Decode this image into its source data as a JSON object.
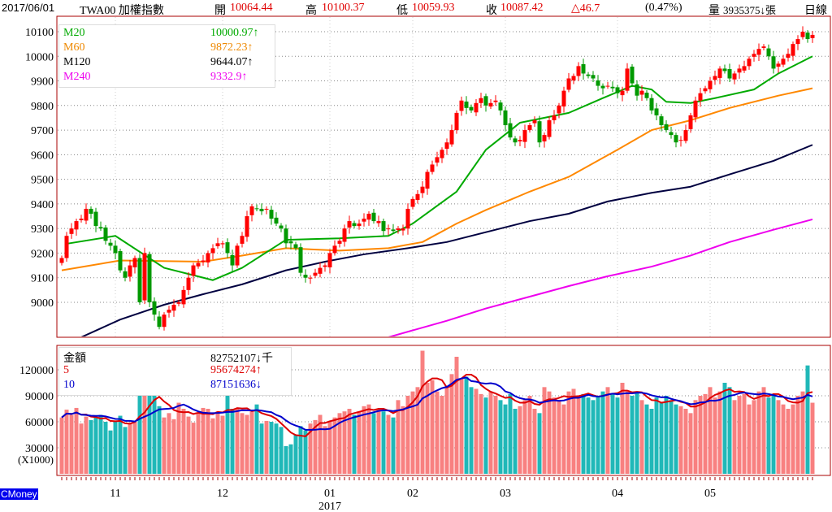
{
  "header": {
    "date": "2017/06/01",
    "symbol": "TWA00 加權指數",
    "open_label": "開",
    "open": "10064.44",
    "high_label": "高",
    "high": "10100.37",
    "low_label": "低",
    "low": "10059.93",
    "close_label": "收",
    "close": "10087.42",
    "change": "△46.7",
    "change_pct": "(0.47%)",
    "volume_label": "量",
    "volume": "3935375↓張",
    "period": "日線"
  },
  "brand": "CMoney",
  "colors": {
    "up": "#ff0000",
    "down": "#009900",
    "ma20": "#00aa00",
    "ma60": "#ff8800",
    "ma120": "#000040",
    "ma240": "#ee00ee",
    "vol_up": "#f88080",
    "vol_down": "#20b8b8",
    "vol_ma5": "#dd0000",
    "vol_ma10": "#0000cc",
    "frame": "#aa0000"
  },
  "price_legend": [
    {
      "name": "M20",
      "value": "10000.97↑",
      "color": "#00aa00"
    },
    {
      "name": "M60",
      "value": "9872.23↑",
      "color": "#ee8800"
    },
    {
      "name": "M120",
      "value": "9644.07↑",
      "color": "#000000"
    },
    {
      "name": "M240",
      "value": "9332.9↑",
      "color": "#ee00ee"
    }
  ],
  "volume_legend": [
    {
      "name": "金額",
      "value": "82752107↓千",
      "color": "#000000"
    },
    {
      "name": "5",
      "value": "95674274↑",
      "color": "#dd0000"
    },
    {
      "name": "10",
      "value": "87151636↓",
      "color": "#0000cc"
    }
  ],
  "chart_data": [
    {
      "type": "candlestick",
      "ylim": [
        8860,
        10150
      ],
      "yticks": [
        "10100",
        "10000",
        "9900",
        "9800",
        "9700",
        "9600",
        "9500",
        "9400",
        "9300",
        "9200",
        "9100",
        "9000"
      ],
      "xticks": [
        {
          "label": "11",
          "bar": 11
        },
        {
          "label": "12",
          "bar": 33
        },
        {
          "label": "01",
          "bar": 55
        },
        {
          "label": "02",
          "bar": 72
        },
        {
          "label": "03",
          "bar": 91
        },
        {
          "label": "04",
          "bar": 114
        },
        {
          "label": "05",
          "bar": 133
        }
      ],
      "xtick_year": {
        "label": "2017",
        "bar": 55
      },
      "closes": [
        9180,
        9270,
        9300,
        9330,
        9340,
        9380,
        9360,
        9310,
        9300,
        9250,
        9230,
        9200,
        9130,
        9100,
        9150,
        9180,
        9000,
        9200,
        9000,
        8950,
        8900,
        8950,
        8970,
        8990,
        9000,
        9050,
        9100,
        9150,
        9160,
        9170,
        9200,
        9220,
        9240,
        9240,
        9200,
        9150,
        9230,
        9270,
        9350,
        9390,
        9380,
        9370,
        9380,
        9340,
        9320,
        9300,
        9240,
        9240,
        9220,
        9120,
        9100,
        9100,
        9120,
        9140,
        9150,
        9200,
        9230,
        9250,
        9300,
        9330,
        9310,
        9320,
        9340,
        9360,
        9330,
        9330,
        9290,
        9300,
        9290,
        9300,
        9300,
        9380,
        9420,
        9440,
        9470,
        9530,
        9560,
        9590,
        9620,
        9650,
        9700,
        9770,
        9820,
        9790,
        9780,
        9810,
        9830,
        9800,
        9810,
        9820,
        9780,
        9720,
        9670,
        9650,
        9660,
        9700,
        9720,
        9740,
        9650,
        9680,
        9740,
        9760,
        9800,
        9860,
        9910,
        9920,
        9960,
        9930,
        9920,
        9910,
        9880,
        9870,
        9880,
        9870,
        9850,
        9860,
        9950,
        9890,
        9840,
        9860,
        9830,
        9780,
        9760,
        9720,
        9700,
        9680,
        9650,
        9660,
        9700,
        9760,
        9820,
        9850,
        9870,
        9900,
        9920,
        9950,
        9940,
        9910,
        9930,
        9950,
        9960,
        9990,
        10010,
        10030,
        10040,
        10000,
        9950,
        9970,
        9990,
        10010,
        10050,
        10070,
        10100,
        10070,
        10087
      ],
      "ma20": [
        [
          1,
          9238
        ],
        [
          11,
          9270
        ],
        [
          21,
          9140
        ],
        [
          31,
          9090
        ],
        [
          37,
          9140
        ],
        [
          46,
          9254
        ],
        [
          57,
          9260
        ],
        [
          67,
          9270
        ],
        [
          72,
          9320
        ],
        [
          81,
          9450
        ],
        [
          87,
          9620
        ],
        [
          94,
          9730
        ],
        [
          104,
          9770
        ],
        [
          111,
          9830
        ],
        [
          117,
          9880
        ],
        [
          121,
          9865
        ],
        [
          124,
          9815
        ],
        [
          129,
          9810
        ],
        [
          134,
          9830
        ],
        [
          142,
          9865
        ],
        [
          147,
          9930
        ],
        [
          154,
          10000
        ]
      ],
      "ma60": [
        [
          0,
          9130
        ],
        [
          12,
          9170
        ],
        [
          29,
          9165
        ],
        [
          37,
          9190
        ],
        [
          46,
          9220
        ],
        [
          57,
          9210
        ],
        [
          67,
          9220
        ],
        [
          74,
          9245
        ],
        [
          81,
          9320
        ],
        [
          87,
          9375
        ],
        [
          96,
          9450
        ],
        [
          104,
          9510
        ],
        [
          114,
          9620
        ],
        [
          121,
          9700
        ],
        [
          129,
          9740
        ],
        [
          137,
          9790
        ],
        [
          147,
          9840
        ],
        [
          154,
          9870
        ]
      ],
      "ma120": [
        [
          4,
          8858
        ],
        [
          12,
          8930
        ],
        [
          21,
          8990
        ],
        [
          29,
          9033
        ],
        [
          37,
          9073
        ],
        [
          46,
          9130
        ],
        [
          54,
          9165
        ],
        [
          62,
          9195
        ],
        [
          71,
          9220
        ],
        [
          79,
          9245
        ],
        [
          87,
          9285
        ],
        [
          96,
          9330
        ],
        [
          104,
          9360
        ],
        [
          112,
          9410
        ],
        [
          121,
          9445
        ],
        [
          129,
          9470
        ],
        [
          137,
          9520
        ],
        [
          146,
          9575
        ],
        [
          154,
          9640
        ]
      ],
      "ma240": [
        [
          67,
          8858
        ],
        [
          79,
          8925
        ],
        [
          87,
          8975
        ],
        [
          96,
          9023
        ],
        [
          104,
          9066
        ],
        [
          112,
          9106
        ],
        [
          121,
          9145
        ],
        [
          129,
          9190
        ],
        [
          137,
          9245
        ],
        [
          146,
          9295
        ],
        [
          154,
          9337
        ]
      ]
    },
    {
      "type": "bar",
      "ylabel": "(X1000)",
      "yticks": [
        "120000",
        "90000",
        "60000",
        "30000"
      ],
      "ylim": [
        0,
        145000
      ],
      "values": [
        65000,
        74000,
        68000,
        76000,
        58000,
        66000,
        62000,
        65000,
        68000,
        60000,
        50000,
        60000,
        67000,
        54000,
        58000,
        60000,
        92000,
        90000,
        92000,
        92000,
        78000,
        65000,
        70000,
        63000,
        82000,
        75000,
        66000,
        59000,
        70000,
        76000,
        75000,
        64000,
        72000,
        67000,
        90000,
        75000,
        75000,
        70000,
        68000,
        74000,
        80000,
        58000,
        61000,
        60000,
        58000,
        54000,
        32000,
        34000,
        45000,
        55000,
        50000,
        58000,
        62000,
        68000,
        55000,
        60000,
        65000,
        70000,
        72000,
        75000,
        68000,
        72000,
        78000,
        80000,
        70000,
        75000,
        72000,
        68000,
        65000,
        85000,
        78000,
        90000,
        95000,
        100000,
        142000,
        105000,
        108000,
        95000,
        90000,
        100000,
        115000,
        135000,
        110000,
        112000,
        100000,
        98000,
        92000,
        88000,
        95000,
        90000,
        85000,
        80000,
        92000,
        75000,
        78000,
        85000,
        90000,
        75000,
        70000,
        100000,
        95000,
        88000,
        85000,
        80000,
        95000,
        98000,
        90000,
        92000,
        88000,
        85000,
        90000,
        95000,
        100000,
        92000,
        88000,
        105000,
        95000,
        90000,
        95000,
        85000,
        80000,
        75000,
        88000,
        82000,
        90000,
        85000,
        80000,
        78000,
        75000,
        70000,
        85000,
        90000,
        92000,
        100000,
        88000,
        95000,
        105000,
        100000,
        85000,
        90000,
        92000,
        80000,
        85000,
        95000,
        100000,
        88000,
        92000,
        85000,
        80000,
        75000,
        80000,
        90000,
        95000,
        125000,
        82000
      ],
      "ma_periods": [
        5,
        10
      ]
    }
  ]
}
